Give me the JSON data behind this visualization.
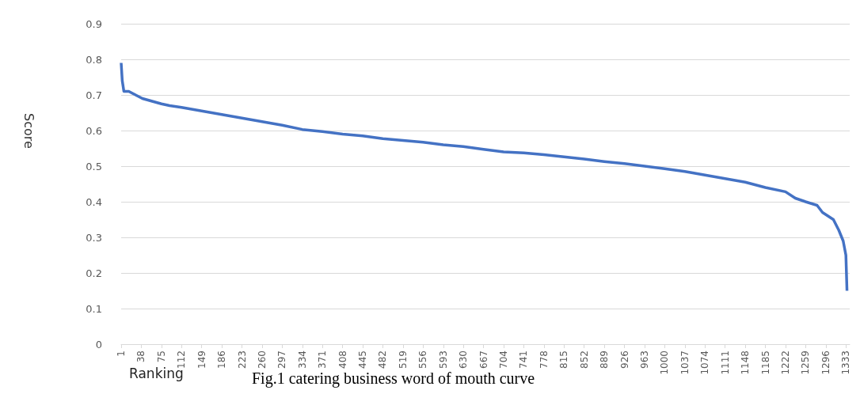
{
  "chart_data": {
    "type": "line",
    "title": "Fig.1 catering business word of mouth curve",
    "xlabel": "Ranking",
    "ylabel": "Score",
    "series": [
      {
        "color": "#4472c4",
        "x": [
          1,
          3,
          6,
          15,
          40,
          75,
          90,
          112,
          149,
          186,
          223,
          260,
          297,
          334,
          371,
          408,
          445,
          482,
          519,
          556,
          593,
          630,
          667,
          704,
          741,
          778,
          815,
          852,
          889,
          926,
          963,
          1000,
          1037,
          1074,
          1111,
          1148,
          1185,
          1222,
          1240,
          1259,
          1280,
          1290,
          1310,
          1320,
          1328,
          1333,
          1335
        ],
        "values": [
          0.79,
          0.74,
          0.71,
          0.71,
          0.69,
          0.675,
          0.67,
          0.665,
          0.655,
          0.645,
          0.635,
          0.625,
          0.615,
          0.603,
          0.597,
          0.59,
          0.585,
          0.577,
          0.572,
          0.567,
          0.56,
          0.555,
          0.547,
          0.54,
          0.537,
          0.532,
          0.526,
          0.52,
          0.513,
          0.507,
          0.5,
          0.493,
          0.485,
          0.475,
          0.465,
          0.455,
          0.44,
          0.428,
          0.41,
          0.4,
          0.39,
          0.37,
          0.35,
          0.32,
          0.29,
          0.25,
          0.15
        ]
      }
    ],
    "xlim": [
      1,
      1340
    ],
    "xticks": [
      1,
      38,
      75,
      112,
      149,
      186,
      223,
      260,
      297,
      334,
      371,
      408,
      445,
      482,
      519,
      556,
      593,
      630,
      667,
      704,
      741,
      778,
      815,
      852,
      889,
      926,
      963,
      1000,
      1037,
      1074,
      1111,
      1148,
      1185,
      1222,
      1259,
      1296,
      1333
    ],
    "ylim": [
      0,
      0.9
    ],
    "yticks": [
      0,
      0.1,
      0.2,
      0.3,
      0.4,
      0.5,
      0.6,
      0.7,
      0.8,
      0.9
    ],
    "grid": "y",
    "marker": "none",
    "line_style": "solid"
  }
}
